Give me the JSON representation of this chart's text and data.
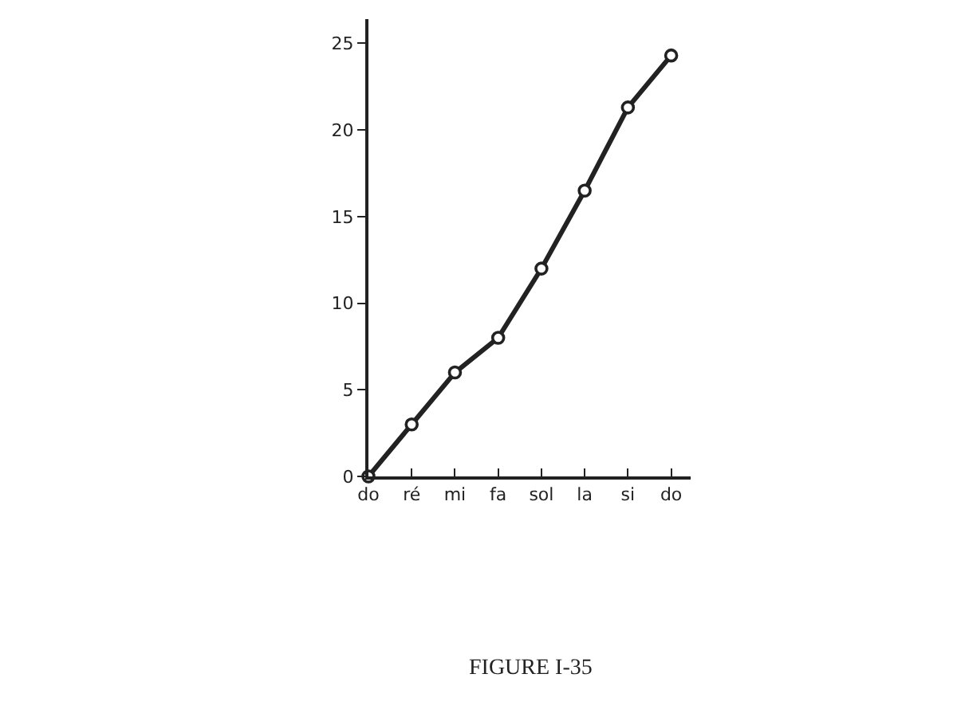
{
  "chart_data": {
    "type": "line",
    "categories": [
      "do",
      "ré",
      "mi",
      "fa",
      "sol",
      "la",
      "si",
      "do"
    ],
    "values": [
      0,
      3,
      6,
      8,
      12,
      16.5,
      21.3,
      24.3
    ],
    "color": "#222222",
    "ylim": [
      0,
      26.4
    ],
    "yticks": [
      0,
      5,
      10,
      15,
      20,
      25
    ],
    "marker": "circle",
    "line_style": "solid",
    "annotations": [
      "FIGURE I-35"
    ]
  }
}
